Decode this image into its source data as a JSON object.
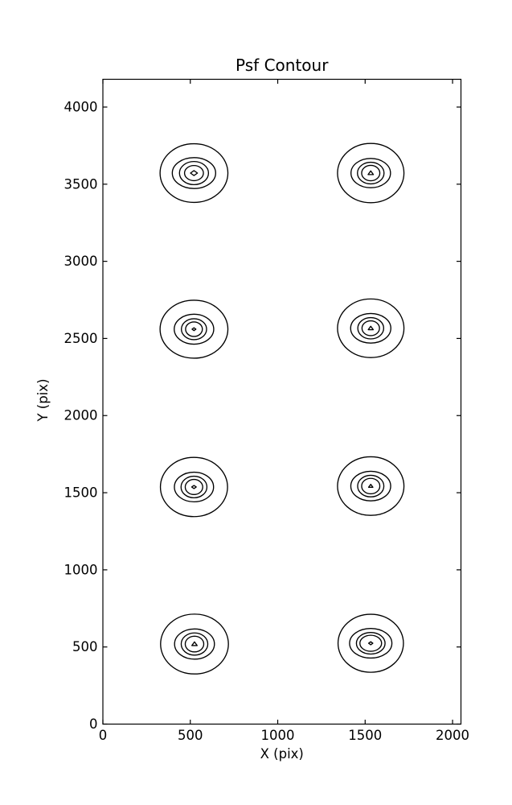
{
  "chart_data": {
    "type": "contour",
    "title": "Psf Contour",
    "xlabel": "X (pix)",
    "ylabel": "Y (pix)",
    "xlim": [
      0,
      2048
    ],
    "ylim": [
      0,
      4180
    ],
    "x_ticks": [
      0,
      500,
      1000,
      1500,
      2000
    ],
    "y_ticks": [
      0,
      500,
      1000,
      1500,
      2000,
      2500,
      3000,
      3500,
      4000
    ],
    "grid": false,
    "legend": "none",
    "colors": {
      "line": "#000000",
      "background": "#ffffff",
      "text": "#000000"
    },
    "description": "Eight PSF spots arranged in 2 columns x 4 rows, each drawn as 5 nested contour levels; ring radii given in data (pixel) units",
    "blobs": [
      {
        "cx": 521,
        "cy": 3572,
        "rings": [
          [
            194,
            190
          ],
          [
            124,
            100
          ],
          [
            83,
            75
          ],
          [
            54,
            49
          ]
        ],
        "inner": {
          "shape": "diamond",
          "rx": 20,
          "ry": 16
        }
      },
      {
        "cx": 1532,
        "cy": 3572,
        "rings": [
          [
            190,
            192
          ],
          [
            113,
            95
          ],
          [
            76,
            70
          ],
          [
            52,
            50
          ]
        ],
        "inner": {
          "shape": "triangle",
          "rx": 16,
          "ry": 14
        }
      },
      {
        "cx": 521,
        "cy": 2560,
        "rings": [
          [
            194,
            188
          ],
          [
            113,
            97
          ],
          [
            72,
            68
          ],
          [
            48,
            47
          ]
        ],
        "inner": {
          "shape": "diamond",
          "rx": 11,
          "ry": 9
        }
      },
      {
        "cx": 1532,
        "cy": 2566,
        "rings": [
          [
            190,
            190
          ],
          [
            115,
            96
          ],
          [
            74,
            69
          ],
          [
            50,
            48
          ]
        ],
        "inner": {
          "shape": "triangle",
          "rx": 15,
          "ry": 13
        }
      },
      {
        "cx": 521,
        "cy": 1537,
        "rings": [
          [
            192,
            192
          ],
          [
            112,
            96
          ],
          [
            74,
            70
          ],
          [
            50,
            49
          ]
        ],
        "inner": {
          "shape": "diamond",
          "rx": 13,
          "ry": 10
        }
      },
      {
        "cx": 1532,
        "cy": 1543,
        "rings": [
          [
            190,
            190
          ],
          [
            114,
            96
          ],
          [
            75,
            70
          ],
          [
            52,
            50
          ]
        ],
        "inner": {
          "shape": "triangle",
          "rx": 13,
          "ry": 11
        }
      },
      {
        "cx": 524,
        "cy": 519,
        "rings": [
          [
            194,
            194
          ],
          [
            114,
            98
          ],
          [
            76,
            72
          ],
          [
            53,
            51
          ]
        ],
        "inner": {
          "shape": "triangle",
          "rx": 16,
          "ry": 14
        }
      },
      {
        "cx": 1532,
        "cy": 524,
        "rings": [
          [
            187,
            188
          ],
          [
            121,
            96
          ],
          [
            82,
            70
          ],
          [
            62,
            52
          ]
        ],
        "inner": {
          "shape": "diamond",
          "rx": 12,
          "ry": 10
        }
      }
    ]
  }
}
